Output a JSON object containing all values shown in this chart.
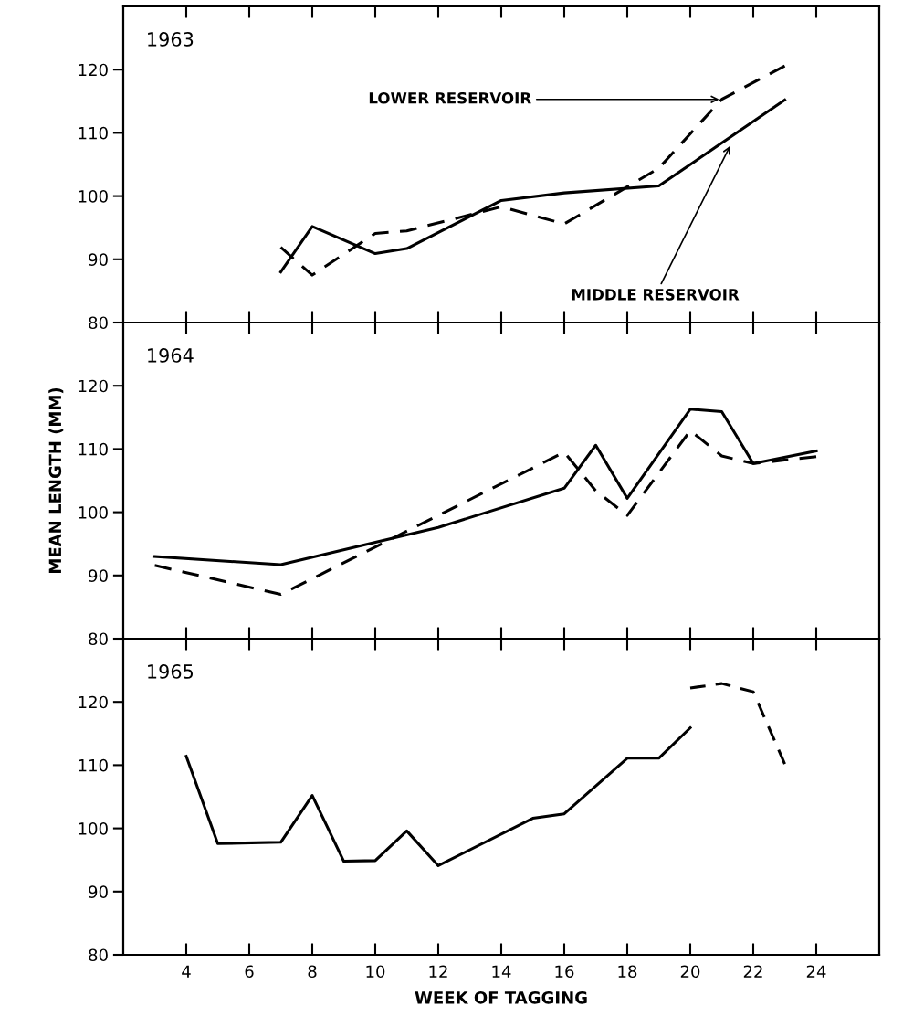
{
  "chart_data": [
    {
      "type": "line",
      "title": "1963",
      "xlim": [
        2,
        26
      ],
      "xticks": [
        4,
        6,
        8,
        10,
        12,
        14,
        16,
        18,
        20,
        22,
        24
      ],
      "ylim": [
        80,
        130
      ],
      "yticks": [
        80,
        90,
        100,
        110,
        120
      ],
      "tick_labels": "y",
      "series": [
        {
          "color": "#000000",
          "line_style": "solid",
          "x": [
            7,
            8,
            10,
            11,
            14,
            16,
            19,
            23
          ],
          "values": [
            88.0,
            95.2,
            90.9,
            91.7,
            99.3,
            100.5,
            101.6,
            115.2
          ]
        },
        {
          "color": "#000000",
          "line_style": "dashed",
          "x": [
            7,
            8,
            10,
            11,
            14,
            16,
            19,
            21,
            23
          ],
          "values": [
            91.9,
            87.5,
            94.1,
            94.5,
            98.3,
            95.6,
            104.4,
            115.3,
            120.6
          ]
        }
      ],
      "annotations": [
        {
          "text": "LOWER RESERVOIR",
          "x": 21,
          "y": 115.3
        },
        {
          "text": "MIDDLE RESERVOIR",
          "x": 21.3,
          "y": 108.3
        }
      ]
    },
    {
      "type": "line",
      "title": "1964",
      "xlim": [
        2,
        26
      ],
      "xticks": [
        4,
        6,
        8,
        10,
        12,
        14,
        16,
        18,
        20,
        22,
        24
      ],
      "ylim": [
        80,
        130
      ],
      "yticks": [
        80,
        90,
        100,
        110,
        120
      ],
      "tick_labels": "y",
      "ylabel": "MEAN LENGTH (MM)",
      "series": [
        {
          "color": "#000000",
          "line_style": "solid",
          "x": [
            3,
            7,
            12,
            16,
            17,
            18,
            20,
            21,
            22,
            24
          ],
          "values": [
            93.0,
            91.7,
            97.6,
            103.8,
            110.6,
            102.2,
            116.3,
            115.9,
            107.7,
            109.7
          ]
        },
        {
          "color": "#000000",
          "line_style": "dashed",
          "x": [
            3,
            7,
            16,
            17,
            18,
            20,
            21,
            22,
            24
          ],
          "values": [
            91.6,
            87.0,
            109.5,
            103.4,
            99.5,
            112.9,
            108.9,
            107.7,
            108.8
          ]
        }
      ]
    },
    {
      "type": "line",
      "title": "1965",
      "xlim": [
        2,
        26
      ],
      "xticks": [
        4,
        6,
        8,
        10,
        12,
        14,
        16,
        18,
        20,
        22,
        24
      ],
      "ylim": [
        80,
        130
      ],
      "yticks": [
        80,
        90,
        100,
        110,
        120
      ],
      "xlabel": "WEEK OF TAGGING",
      "series": [
        {
          "color": "#000000",
          "line_style": "solid",
          "x": [
            4,
            5,
            7,
            8,
            9,
            10,
            11,
            12,
            15,
            16,
            18,
            19,
            20
          ],
          "values": [
            111.4,
            97.6,
            97.8,
            105.2,
            94.8,
            94.9,
            99.6,
            94.1,
            101.6,
            102.3,
            111.1,
            111.1,
            115.9
          ]
        },
        {
          "color": "#000000",
          "line_style": "dashed",
          "x": [
            20,
            21,
            22,
            23
          ],
          "values": [
            122.2,
            122.9,
            121.6,
            110.2
          ]
        }
      ]
    }
  ]
}
